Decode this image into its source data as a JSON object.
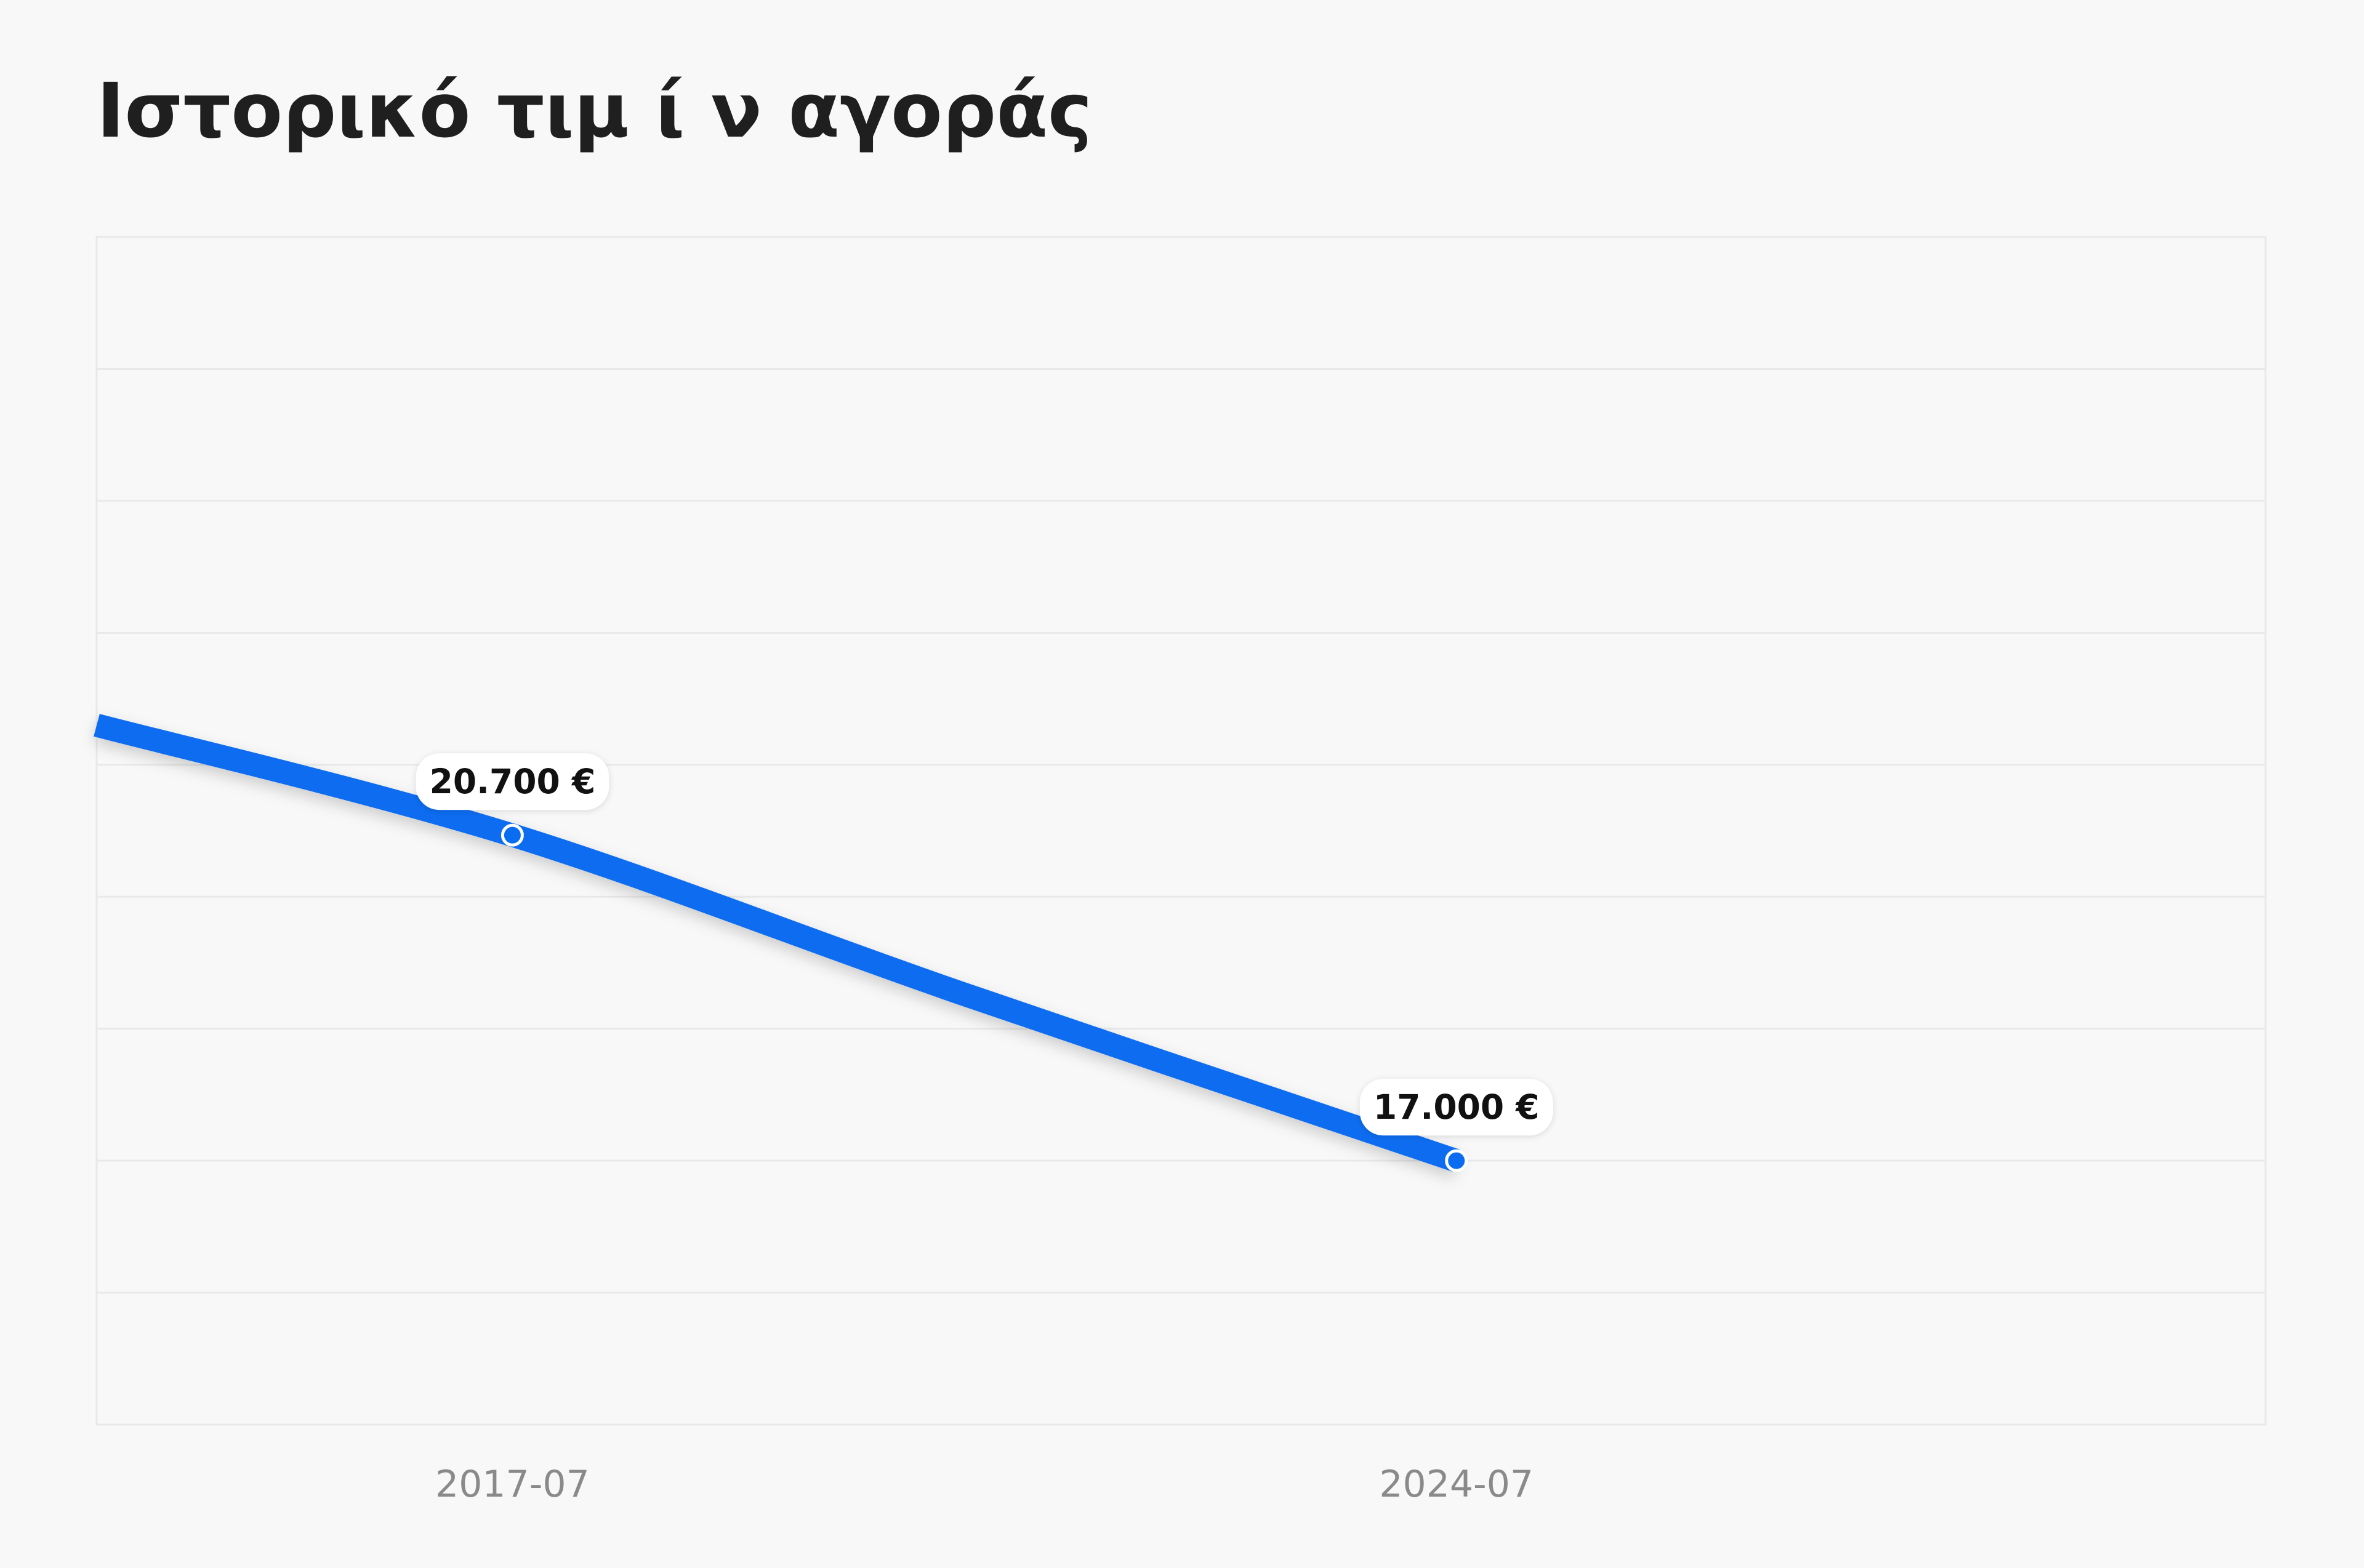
{
  "title": "Ιστορικό τιμ ί ν αγοράς",
  "colors": {
    "background": "#f8f8f8",
    "line": "#0a6cf0",
    "grid": "#e9e9e9"
  },
  "chart_data": {
    "type": "line",
    "title": "Ιστορικό τιμ ί ν αγοράς",
    "xlabel": "",
    "ylabel": "",
    "grid": true,
    "x_ticks": [
      "2017-07",
      "2024-07"
    ],
    "x_range": [
      "2014-06",
      "2030-07"
    ],
    "y_range": [
      14000,
      27500
    ],
    "series": [
      {
        "points": [
          {
            "x": "2014-06",
            "y": 21950
          },
          {
            "x": "2017-07",
            "y": 20700,
            "label": "20.700 €"
          },
          {
            "x": "2020-11",
            "y": 18900
          },
          {
            "x": "2024-07",
            "y": 17000,
            "label": "17.000 €"
          }
        ]
      }
    ]
  }
}
